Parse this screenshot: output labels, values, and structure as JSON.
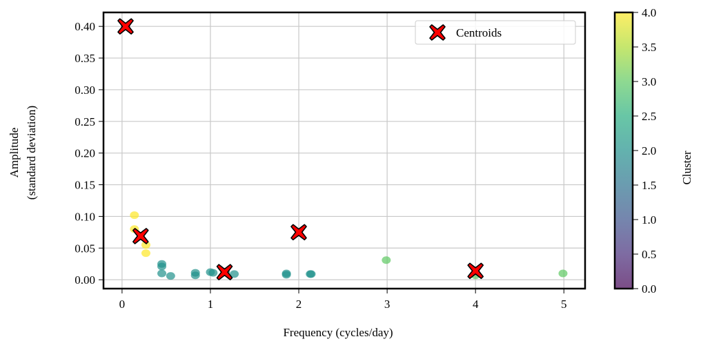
{
  "chart_data": {
    "type": "scatter",
    "title": "",
    "xlabel": "Frequency (cycles/day)",
    "ylabel": [
      "Amplitude",
      "(standard deviation)"
    ],
    "xlim": [
      -0.21,
      5.24
    ],
    "ylim": [
      -0.014,
      0.422
    ],
    "xticks": [
      0,
      1,
      2,
      3,
      4,
      5
    ],
    "xtick_labels": [
      "0",
      "1",
      "2",
      "3",
      "4",
      "5"
    ],
    "yticks": [
      0.0,
      0.05,
      0.1,
      0.15,
      0.2,
      0.25,
      0.3,
      0.35,
      0.4
    ],
    "ytick_labels": [
      "0.00",
      "0.05",
      "0.10",
      "0.15",
      "0.20",
      "0.25",
      "0.30",
      "0.35",
      "0.40"
    ],
    "grid": true,
    "colormap": "viridis",
    "colormap_alpha": 0.7,
    "colorbar": {
      "label": "Cluster",
      "range": [
        0.0,
        4.0
      ],
      "ticks": [
        0.0,
        0.5,
        1.0,
        1.5,
        2.0,
        2.5,
        3.0,
        3.5,
        4.0
      ],
      "tick_labels": [
        "0.0",
        "0.5",
        "1.0",
        "1.5",
        "2.0",
        "2.5",
        "3.0",
        "3.5",
        "4.0"
      ]
    },
    "points": [
      {
        "x": 0.04,
        "y": 0.4,
        "cluster": 0
      },
      {
        "x": 0.14,
        "y": 0.102,
        "cluster": 4
      },
      {
        "x": 0.14,
        "y": 0.08,
        "cluster": 4
      },
      {
        "x": 0.27,
        "y": 0.055,
        "cluster": 4
      },
      {
        "x": 0.27,
        "y": 0.042,
        "cluster": 4
      },
      {
        "x": 0.45,
        "y": 0.025,
        "cluster": 2
      },
      {
        "x": 0.45,
        "y": 0.021,
        "cluster": 2
      },
      {
        "x": 0.45,
        "y": 0.01,
        "cluster": 2
      },
      {
        "x": 0.55,
        "y": 0.006,
        "cluster": 2
      },
      {
        "x": 0.83,
        "y": 0.011,
        "cluster": 2
      },
      {
        "x": 0.83,
        "y": 0.007,
        "cluster": 2
      },
      {
        "x": 1.0,
        "y": 0.012,
        "cluster": 2
      },
      {
        "x": 1.03,
        "y": 0.011,
        "cluster": 2
      },
      {
        "x": 1.17,
        "y": 0.013,
        "cluster": 2
      },
      {
        "x": 1.27,
        "y": 0.009,
        "cluster": 2
      },
      {
        "x": 1.86,
        "y": 0.01,
        "cluster": 2
      },
      {
        "x": 1.86,
        "y": 0.008,
        "cluster": 2
      },
      {
        "x": 2.14,
        "y": 0.009,
        "cluster": 2
      },
      {
        "x": 2.13,
        "y": 0.009,
        "cluster": 2
      },
      {
        "x": 2.99,
        "y": 0.031,
        "cluster": 3
      },
      {
        "x": 4.0,
        "y": 0.007,
        "cluster": 3
      },
      {
        "x": 4.99,
        "y": 0.01,
        "cluster": 3
      }
    ],
    "centroids": {
      "label": "Centroids",
      "color": "#ff0000",
      "points": [
        {
          "x": 0.04,
          "y": 0.4
        },
        {
          "x": 0.21,
          "y": 0.069
        },
        {
          "x": 1.16,
          "y": 0.012
        },
        {
          "x": 2.0,
          "y": 0.075
        },
        {
          "x": 4.0,
          "y": 0.014
        }
      ]
    },
    "legend": {
      "placement": "top-right",
      "entries": [
        "Centroids"
      ]
    }
  }
}
